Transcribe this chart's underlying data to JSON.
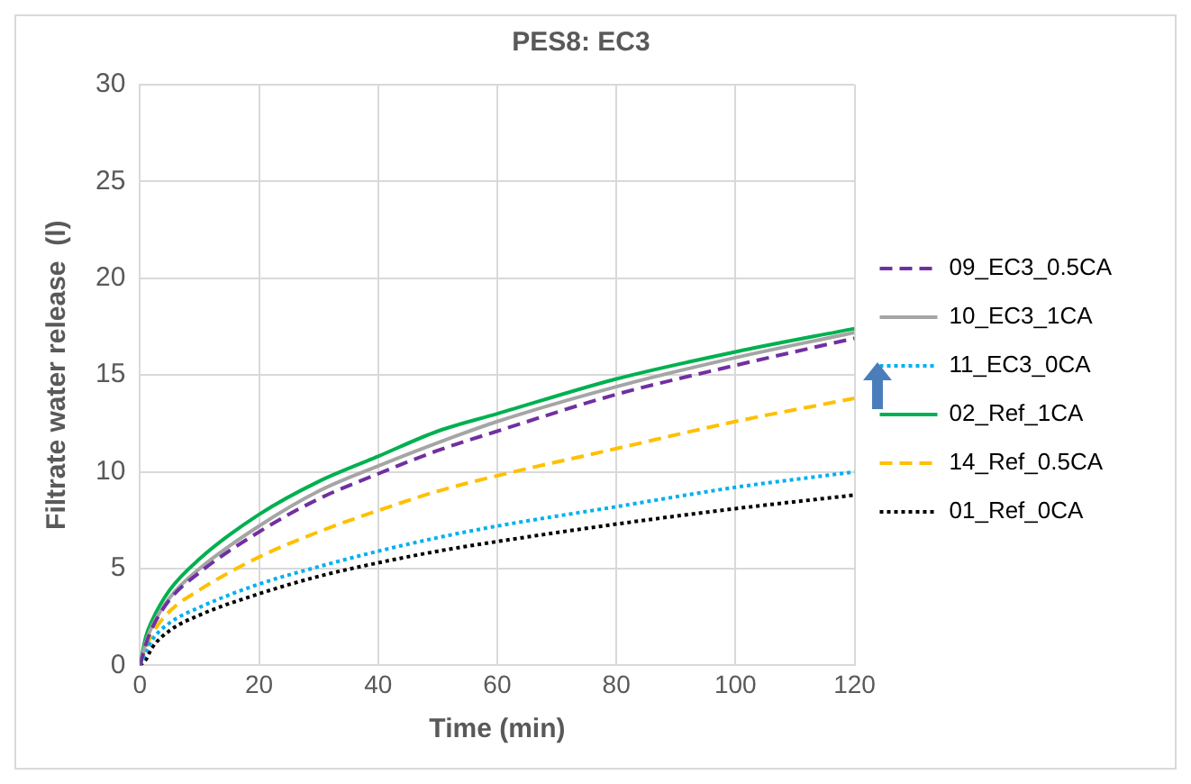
{
  "chart_data": {
    "type": "line",
    "title": "PES8: EC3",
    "xlabel": "Time (min)",
    "ylabel": "Filtrate water release  (l)",
    "x": [
      0,
      1,
      2,
      5,
      10,
      20,
      30,
      40,
      50,
      60,
      80,
      100,
      120
    ],
    "series": [
      {
        "name": "09_EC3_0.5CA",
        "color": "#7030a0",
        "line_style": "dashed",
        "values": [
          0,
          1.1,
          1.9,
          3.4,
          4.8,
          6.9,
          8.6,
          9.9,
          11.1,
          12.1,
          14.0,
          15.5,
          16.9
        ]
      },
      {
        "name": "10_EC3_1CA",
        "color": "#a5a5a5",
        "line_style": "solid",
        "values": [
          0,
          1.2,
          2.0,
          3.5,
          5.0,
          7.2,
          9.0,
          10.3,
          11.5,
          12.6,
          14.4,
          15.9,
          17.2
        ]
      },
      {
        "name": "11_EC3_0CA",
        "color": "#00b0f0",
        "line_style": "dotted",
        "values": [
          0,
          0.7,
          1.3,
          2.2,
          3.0,
          4.2,
          5.1,
          5.9,
          6.6,
          7.2,
          8.2,
          9.2,
          10.0
        ]
      },
      {
        "name": "02_Ref_1CA",
        "color": "#00b050",
        "line_style": "solid",
        "values": [
          0,
          1.5,
          2.3,
          3.9,
          5.5,
          7.8,
          9.5,
          10.8,
          12.1,
          13.0,
          14.8,
          16.2,
          17.4
        ]
      },
      {
        "name": "14_Ref_0.5CA",
        "color": "#ffc000",
        "line_style": "dashed",
        "values": [
          0,
          0.9,
          1.6,
          2.8,
          3.9,
          5.6,
          6.9,
          8.0,
          9.0,
          9.8,
          11.2,
          12.6,
          13.8
        ]
      },
      {
        "name": "01_Ref_0CA",
        "color": "#000000",
        "line_style": "dotted",
        "values": [
          0,
          0.3,
          0.9,
          1.8,
          2.6,
          3.7,
          4.6,
          5.3,
          5.9,
          6.4,
          7.3,
          8.1,
          8.8
        ]
      }
    ],
    "xlim": [
      0,
      120
    ],
    "xticks": [
      0,
      20,
      40,
      60,
      80,
      100,
      120
    ],
    "ylim": [
      0,
      30
    ],
    "yticks": [
      0,
      5,
      10,
      15,
      20,
      25,
      30
    ],
    "grid": true,
    "legend": "right",
    "marker": "none"
  }
}
